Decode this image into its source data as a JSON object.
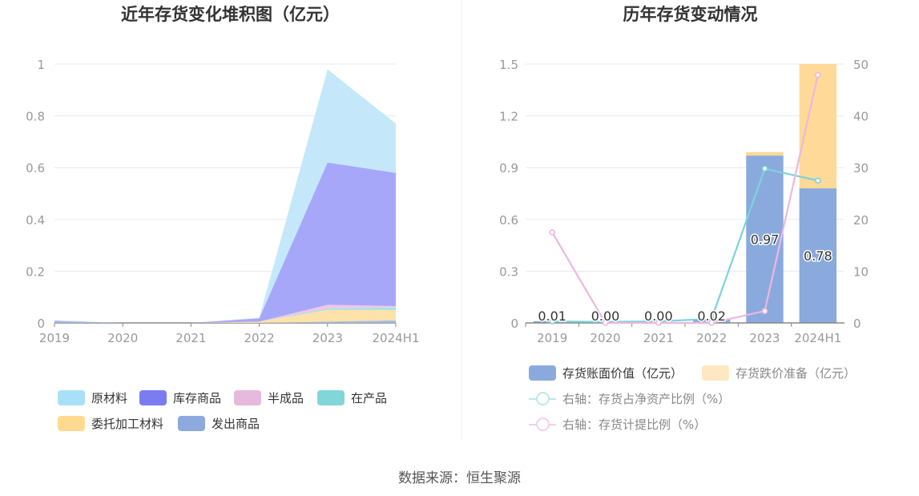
{
  "source_text": "数据来源：恒生聚源",
  "colors": {
    "raw_material": "#bfe6fa",
    "finished_goods": "#9fa0fa",
    "semi_finished": "#ecc3e5",
    "wip": "#9fe0e2",
    "consigned": "#ffe0a3",
    "shipped": "#9fb8e0",
    "book_value": "#8aaade",
    "impairment": "#ffd997",
    "ratio_net_assets": "#7dd3da",
    "impairment_ratio": "#ecb7df"
  },
  "chart_data": [
    {
      "type": "area",
      "title": "近年存货变化堆积图（亿元）",
      "categories": [
        "2019",
        "2020",
        "2021",
        "2022",
        "2023",
        "2024H1"
      ],
      "ylim": [
        0,
        1
      ],
      "y_ticks": [
        "0",
        "0.2",
        "0.4",
        "0.6",
        "0.8",
        "1"
      ],
      "stacked": true,
      "series": [
        {
          "name": "发出商品",
          "values": [
            0.005,
            0,
            0,
            0,
            0.005,
            0.01
          ]
        },
        {
          "name": "委托加工材料",
          "values": [
            0,
            0,
            0,
            0.005,
            0.045,
            0.04
          ]
        },
        {
          "name": "在产品",
          "values": [
            0,
            0,
            0,
            0,
            0.005,
            0.01
          ]
        },
        {
          "name": "半成品",
          "values": [
            0,
            0,
            0,
            0,
            0.015,
            0.005
          ]
        },
        {
          "name": "库存商品",
          "values": [
            0.003,
            0,
            0,
            0.013,
            0.55,
            0.515
          ]
        },
        {
          "name": "原材料",
          "values": [
            0.002,
            0,
            0,
            0.002,
            0.36,
            0.19
          ]
        }
      ],
      "legend": [
        "原材料",
        "库存商品",
        "半成品",
        "在产品",
        "委托加工材料",
        "发出商品"
      ],
      "legend_placement": "bottom",
      "grid": true
    },
    {
      "type": "bar",
      "title": "历年存货变动情况",
      "categories": [
        "2019",
        "2020",
        "2021",
        "2022",
        "2023",
        "2024H1"
      ],
      "ylim": [
        0,
        1.5
      ],
      "y_ticks": [
        "0",
        "0.3",
        "0.6",
        "0.9",
        "1.2",
        "1.5"
      ],
      "y2lim": [
        0,
        50
      ],
      "y2_ticks": [
        "0",
        "10",
        "20",
        "30",
        "40",
        "50"
      ],
      "stacked": true,
      "series": [
        {
          "name": "存货账面价值（亿元）",
          "axis": "left",
          "kind": "bar",
          "values": [
            0.01,
            0.0,
            0.0,
            0.02,
            0.97,
            0.78
          ],
          "labels": [
            "0.01",
            "0.00",
            "0.00",
            "0.02",
            "0.97",
            "0.78"
          ]
        },
        {
          "name": "存货跌价准备（亿元）",
          "axis": "left",
          "kind": "bar",
          "values": [
            0,
            0,
            0,
            0,
            0.02,
            0.75
          ]
        },
        {
          "name": "右轴：存货占净资产比例（%）",
          "axis": "right",
          "kind": "line",
          "values": [
            0.3,
            0.2,
            0.3,
            0.8,
            29.8,
            27.5
          ]
        },
        {
          "name": "右轴：存货计提比例（%）",
          "axis": "right",
          "kind": "line",
          "values": [
            17.5,
            0,
            0,
            0,
            2.3,
            47.9
          ]
        }
      ],
      "legend_placement": "bottom",
      "grid": true
    }
  ]
}
